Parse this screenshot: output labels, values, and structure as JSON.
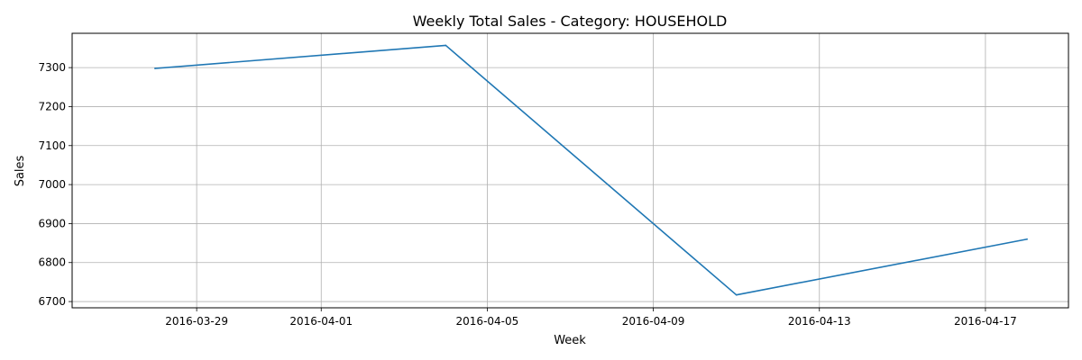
{
  "chart_data": {
    "type": "line",
    "title": "Weekly Total Sales - Category: HOUSEHOLD",
    "xlabel": "Week",
    "ylabel": "Sales",
    "x_type": "date",
    "xlim": [
      "2016-03-26",
      "2016-04-19"
    ],
    "ylim": [
      6684,
      7388
    ],
    "x_ticks": [
      "2016-03-29",
      "2016-04-01",
      "2016-04-05",
      "2016-04-09",
      "2016-04-13",
      "2016-04-17"
    ],
    "y_ticks": [
      6700,
      6800,
      6900,
      7000,
      7100,
      7200,
      7300
    ],
    "grid": true,
    "legend": false,
    "series": [
      {
        "color": "#1f77b4",
        "x": [
          "2016-03-28",
          "2016-04-04",
          "2016-04-11",
          "2016-04-18"
        ],
        "y": [
          7298,
          7357,
          6717,
          6860
        ]
      }
    ]
  }
}
